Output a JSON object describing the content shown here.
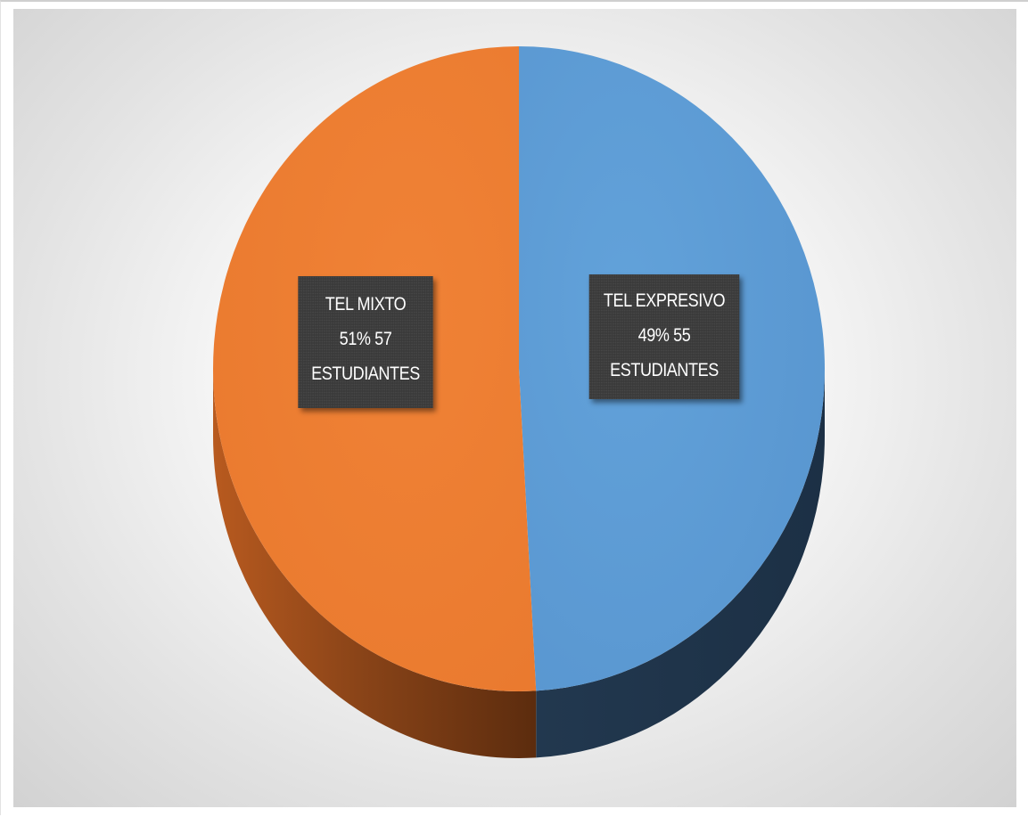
{
  "chart_data": {
    "type": "pie",
    "title": "",
    "slices": [
      {
        "name": "TEL EXPRESIVO",
        "value": 55,
        "percent": 49,
        "label_lines": [
          "TEL EXPRESIVO",
          "49% 55",
          "ESTUDIANTES"
        ],
        "color": "#5b9bd5",
        "side_color": "#233c55"
      },
      {
        "name": "TEL MIXTO",
        "value": 57,
        "percent": 51,
        "label_lines": [
          "TEL MIXTO",
          "51% 57",
          "ESTUDIANTES"
        ],
        "color": "#ed7d31",
        "side_color": "#6b3512"
      }
    ],
    "style": "3d-pie",
    "legend": "none"
  }
}
